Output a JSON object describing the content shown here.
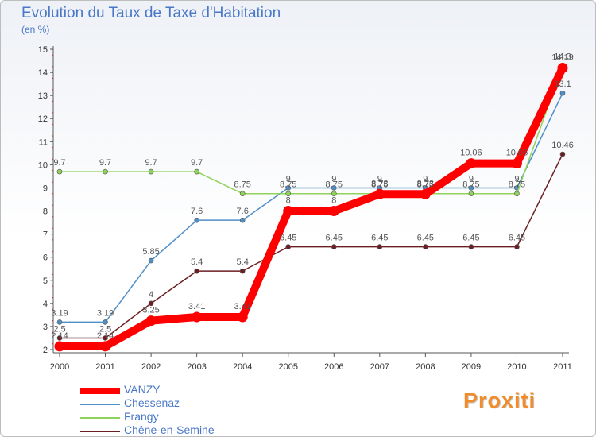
{
  "header": {
    "title": "Evolution du Taux de Taxe d'Habitation",
    "subtitle": "(en %)"
  },
  "logo": {
    "text": "Proxiti"
  },
  "chart_data": {
    "type": "line",
    "title": "Evolution du Taux de Taxe d'Habitation",
    "subtitle": "(en %)",
    "x": [
      2000,
      2001,
      2002,
      2003,
      2004,
      2005,
      2006,
      2007,
      2008,
      2009,
      2010,
      2011
    ],
    "ylim": [
      2,
      15
    ],
    "yticks": [
      2,
      3,
      4,
      5,
      6,
      7,
      8,
      9,
      10,
      11,
      12,
      13,
      14,
      15
    ],
    "grid": false,
    "legend_position": "bottom-left",
    "series": [
      {
        "name": "VANZY",
        "color": "#ff0000",
        "values": [
          2.14,
          2.14,
          3.25,
          3.41,
          3.41,
          8,
          8,
          8.73,
          8.73,
          10.06,
          10.06,
          14.19
        ],
        "labels": [
          "2.14",
          "2.14",
          "3.25",
          "3.41",
          "3.41",
          "8",
          "8",
          "8.73",
          "8.73",
          "10.06",
          "10.06",
          "14.19"
        ]
      },
      {
        "name": "Chessenaz",
        "color": "#4f8fc7",
        "values": [
          3.19,
          3.19,
          5.85,
          7.6,
          7.6,
          9,
          9,
          9,
          9,
          9,
          9,
          13.1
        ],
        "labels": [
          "3.19",
          "3.19",
          "5.85",
          "7.6",
          "7.6",
          "9",
          "9",
          "9",
          "9",
          "9",
          "9",
          "13.1"
        ]
      },
      {
        "name": "Frangy",
        "color": "#8fd35a",
        "values": [
          9.7,
          9.7,
          9.7,
          9.7,
          8.75,
          8.75,
          8.75,
          8.75,
          8.75,
          8.75,
          8.75,
          14.3
        ],
        "labels": [
          "9.7",
          "9.7",
          "9.7",
          "9.7",
          "8.75",
          "8.75",
          "8.75",
          "8.75",
          "8.75",
          "8.75",
          "8.75",
          "14.3"
        ]
      },
      {
        "name": "Chêne-en-Semine",
        "color": "#6b1f22",
        "values": [
          2.5,
          2.5,
          4,
          5.4,
          5.4,
          6.45,
          6.45,
          6.45,
          6.45,
          6.45,
          6.45,
          10.46
        ],
        "labels": [
          "2.5",
          "2.5",
          "4",
          "5.4",
          "5.4",
          "6.45",
          "6.45",
          "6.45",
          "6.45",
          "6.45",
          "6.45",
          "10.46"
        ]
      }
    ]
  }
}
